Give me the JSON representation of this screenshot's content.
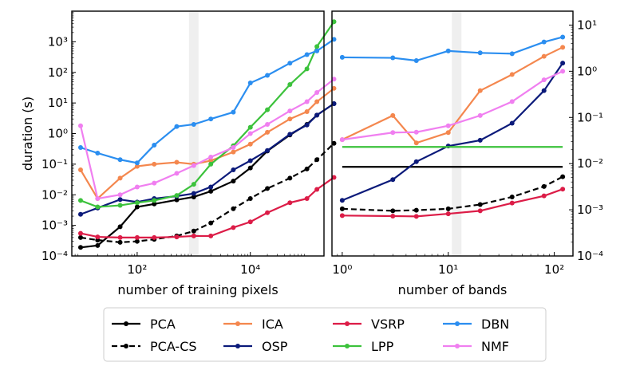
{
  "chart_data": [
    {
      "type": "line",
      "xlabel": "number of training pixels",
      "ylabel": "duration (s)",
      "xscale": "log",
      "yscale": "log",
      "xlim": [
        7,
        200000
      ],
      "ylim": [
        0.0001,
        10000
      ],
      "xticks": [
        {
          "value": 100,
          "label": "10²"
        },
        {
          "value": 10000,
          "label": "10⁴"
        }
      ],
      "yticks": [
        {
          "value": 0.0001,
          "label": "10⁻⁴"
        },
        {
          "value": 0.001,
          "label": "10⁻³"
        },
        {
          "value": 0.01,
          "label": "10⁻²"
        },
        {
          "value": 0.1,
          "label": "10⁻¹"
        },
        {
          "value": 1,
          "label": "10⁰"
        },
        {
          "value": 10,
          "label": "10¹"
        },
        {
          "value": 100,
          "label": "10²"
        },
        {
          "value": 1000,
          "label": "10³"
        }
      ],
      "ytick_side": "left",
      "highlight_x": 1000,
      "grid": false,
      "series": [
        {
          "name": "PCA",
          "color": "#000000",
          "style": "solid",
          "points": [
            [
              10,
              0.00019
            ],
            [
              20,
              0.00022
            ],
            [
              50,
              0.0009
            ],
            [
              100,
              0.004
            ],
            [
              200,
              0.005
            ],
            [
              500,
              0.0068
            ],
            [
              1000,
              0.0085
            ],
            [
              2000,
              0.013
            ],
            [
              5000,
              0.028
            ],
            [
              10000,
              0.075
            ],
            [
              20000,
              0.27
            ],
            [
              50000,
              0.9
            ],
            [
              100000,
              2.0
            ],
            [
              150000,
              4.0
            ],
            [
              300000,
              9.5
            ]
          ]
        },
        {
          "name": "PCA-CS",
          "color": "#000000",
          "style": "dashed",
          "points": [
            [
              10,
              0.0004
            ],
            [
              20,
              0.00033
            ],
            [
              50,
              0.00028
            ],
            [
              100,
              0.0003
            ],
            [
              200,
              0.00035
            ],
            [
              500,
              0.00045
            ],
            [
              1000,
              0.00065
            ],
            [
              2000,
              0.0012
            ],
            [
              5000,
              0.0035
            ],
            [
              10000,
              0.0075
            ],
            [
              20000,
              0.016
            ],
            [
              50000,
              0.035
            ],
            [
              100000,
              0.07
            ],
            [
              150000,
              0.14
            ],
            [
              300000,
              0.48
            ]
          ]
        },
        {
          "name": "ICA",
          "color": "#f4874e",
          "style": "solid",
          "points": [
            [
              10,
              0.065
            ],
            [
              20,
              0.0075
            ],
            [
              50,
              0.035
            ],
            [
              100,
              0.085
            ],
            [
              200,
              0.1
            ],
            [
              500,
              0.115
            ],
            [
              1000,
              0.1
            ],
            [
              2000,
              0.13
            ],
            [
              5000,
              0.25
            ],
            [
              10000,
              0.45
            ],
            [
              20000,
              1.1
            ],
            [
              50000,
              3.0
            ],
            [
              100000,
              5.2
            ],
            [
              150000,
              11.0
            ],
            [
              300000,
              30.0
            ]
          ]
        },
        {
          "name": "OSP",
          "color": "#0b1a7a",
          "style": "solid",
          "points": [
            [
              10,
              0.0023
            ],
            [
              20,
              0.0037
            ],
            [
              50,
              0.007
            ],
            [
              100,
              0.0058
            ],
            [
              200,
              0.0075
            ],
            [
              500,
              0.009
            ],
            [
              1000,
              0.011
            ],
            [
              2000,
              0.018
            ],
            [
              5000,
              0.065
            ],
            [
              10000,
              0.13
            ],
            [
              20000,
              0.28
            ],
            [
              50000,
              0.95
            ],
            [
              100000,
              1.9
            ],
            [
              150000,
              4.0
            ],
            [
              300000,
              9.5
            ]
          ]
        },
        {
          "name": "VSRP",
          "color": "#dc1c47",
          "style": "solid",
          "points": [
            [
              10,
              0.00055
            ],
            [
              20,
              0.00042
            ],
            [
              50,
              0.0004
            ],
            [
              100,
              0.0004
            ],
            [
              200,
              0.0004
            ],
            [
              500,
              0.00042
            ],
            [
              1000,
              0.00045
            ],
            [
              2000,
              0.00045
            ],
            [
              5000,
              0.00085
            ],
            [
              10000,
              0.0013
            ],
            [
              20000,
              0.0026
            ],
            [
              50000,
              0.0055
            ],
            [
              100000,
              0.0075
            ],
            [
              150000,
              0.015
            ],
            [
              300000,
              0.037
            ]
          ]
        },
        {
          "name": "LPP",
          "color": "#3cc23c",
          "style": "solid",
          "points": [
            [
              10,
              0.0065
            ],
            [
              20,
              0.004
            ],
            [
              50,
              0.0045
            ],
            [
              100,
              0.0055
            ],
            [
              200,
              0.0065
            ],
            [
              500,
              0.0095
            ],
            [
              1000,
              0.022
            ],
            [
              2000,
              0.1
            ],
            [
              5000,
              0.4
            ],
            [
              10000,
              1.6
            ],
            [
              20000,
              6.0
            ],
            [
              50000,
              40.0
            ],
            [
              100000,
              130.0
            ],
            [
              150000,
              700.0
            ],
            [
              300000,
              4500.0
            ]
          ]
        },
        {
          "name": "DBN",
          "color": "#2b8ef0",
          "style": "solid",
          "points": [
            [
              10,
              0.35
            ],
            [
              20,
              0.23
            ],
            [
              50,
              0.14
            ],
            [
              100,
              0.11
            ],
            [
              200,
              0.42
            ],
            [
              500,
              1.7
            ],
            [
              1000,
              2.0
            ],
            [
              2000,
              3.0
            ],
            [
              5000,
              5.0
            ],
            [
              10000,
              45.0
            ],
            [
              20000,
              80.0
            ],
            [
              50000,
              200.0
            ],
            [
              100000,
              380.0
            ],
            [
              150000,
              500.0
            ],
            [
              300000,
              1200.0
            ]
          ]
        },
        {
          "name": "NMF",
          "color": "#f07ff0",
          "style": "solid",
          "points": [
            [
              10,
              1.8
            ],
            [
              20,
              0.0075
            ],
            [
              50,
              0.01
            ],
            [
              100,
              0.018
            ],
            [
              200,
              0.024
            ],
            [
              500,
              0.05
            ],
            [
              1000,
              0.09
            ],
            [
              2000,
              0.17
            ],
            [
              5000,
              0.35
            ],
            [
              10000,
              1.0
            ],
            [
              20000,
              2.0
            ],
            [
              50000,
              5.5
            ],
            [
              100000,
              11.0
            ],
            [
              150000,
              22.0
            ],
            [
              300000,
              60.0
            ]
          ]
        }
      ]
    },
    {
      "type": "line",
      "xlabel": "number of bands",
      "ylabel": "",
      "xscale": "log",
      "yscale": "log",
      "xlim": [
        0.8,
        150
      ],
      "ylim": [
        0.0001,
        20
      ],
      "xticks": [
        {
          "value": 1,
          "label": "10⁰"
        },
        {
          "value": 10,
          "label": "10¹"
        },
        {
          "value": 100,
          "label": "10²"
        }
      ],
      "yticks": [
        {
          "value": 0.0001,
          "label": "10⁻⁴"
        },
        {
          "value": 0.001,
          "label": "10⁻³"
        },
        {
          "value": 0.01,
          "label": "10⁻²"
        },
        {
          "value": 0.1,
          "label": "10⁻¹"
        },
        {
          "value": 1,
          "label": "10⁰"
        },
        {
          "value": 10,
          "label": "10¹"
        }
      ],
      "ytick_side": "right",
      "highlight_x": 12,
      "grid": false,
      "series": [
        {
          "name": "PCA",
          "color": "#000000",
          "style": "solid",
          "points": [
            [
              1,
              0.0085
            ],
            [
              120,
              0.0085
            ]
          ]
        },
        {
          "name": "PCA-CS",
          "color": "#000000",
          "style": "dashed",
          "points": [
            [
              1,
              0.00105
            ],
            [
              3,
              0.00095
            ],
            [
              5,
              0.00098
            ],
            [
              10,
              0.00105
            ],
            [
              20,
              0.0013
            ],
            [
              40,
              0.0019
            ],
            [
              80,
              0.0032
            ],
            [
              120,
              0.0052
            ]
          ]
        },
        {
          "name": "ICA",
          "color": "#f4874e",
          "style": "solid",
          "points": [
            [
              1,
              0.033
            ],
            [
              3,
              0.11
            ],
            [
              5,
              0.028
            ],
            [
              10,
              0.047
            ],
            [
              20,
              0.38
            ],
            [
              40,
              0.85
            ],
            [
              80,
              2.1
            ],
            [
              120,
              3.3
            ]
          ]
        },
        {
          "name": "OSP",
          "color": "#0b1a7a",
          "style": "solid",
          "points": [
            [
              1,
              0.0016
            ],
            [
              3,
              0.0045
            ],
            [
              5,
              0.011
            ],
            [
              10,
              0.024
            ],
            [
              20,
              0.032
            ],
            [
              40,
              0.075
            ],
            [
              80,
              0.38
            ],
            [
              120,
              1.5
            ]
          ]
        },
        {
          "name": "VSRP",
          "color": "#dc1c47",
          "style": "solid",
          "points": [
            [
              1,
              0.00075
            ],
            [
              3,
              0.00073
            ],
            [
              5,
              0.00072
            ],
            [
              10,
              0.00082
            ],
            [
              20,
              0.00095
            ],
            [
              40,
              0.0014
            ],
            [
              80,
              0.002
            ],
            [
              120,
              0.0028
            ]
          ]
        },
        {
          "name": "LPP",
          "color": "#3cc23c",
          "style": "solid",
          "points": [
            [
              1,
              0.023
            ],
            [
              120,
              0.023
            ]
          ]
        },
        {
          "name": "DBN",
          "color": "#2b8ef0",
          "style": "solid",
          "points": [
            [
              1,
              2.0
            ],
            [
              3,
              1.95
            ],
            [
              5,
              1.7
            ],
            [
              10,
              2.75
            ],
            [
              20,
              2.5
            ],
            [
              40,
              2.4
            ],
            [
              80,
              4.3
            ],
            [
              120,
              5.5
            ]
          ]
        },
        {
          "name": "NMF",
          "color": "#f07ff0",
          "style": "solid",
          "points": [
            [
              1,
              0.033
            ],
            [
              3,
              0.047
            ],
            [
              5,
              0.048
            ],
            [
              10,
              0.066
            ],
            [
              20,
              0.11
            ],
            [
              40,
              0.22
            ],
            [
              80,
              0.65
            ],
            [
              120,
              1.0
            ]
          ]
        }
      ]
    }
  ],
  "legend": {
    "placement": "bottom",
    "columns": [
      [
        "PCA",
        "PCA-CS"
      ],
      [
        "ICA",
        "OSP"
      ],
      [
        "VSRP",
        "LPP"
      ],
      [
        "DBN",
        "NMF"
      ]
    ]
  }
}
